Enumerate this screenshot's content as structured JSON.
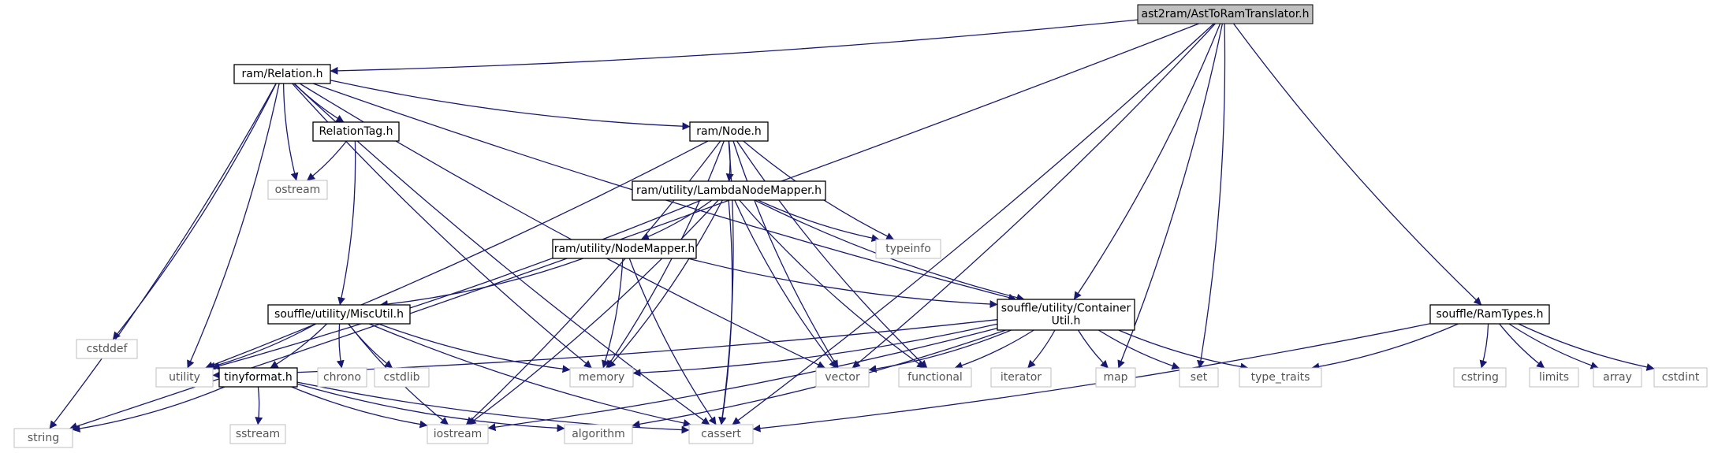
{
  "diagram": {
    "nodes": [
      {
        "id": "n0",
        "lines": [
          "ast2ram/AstToRamTranslator.h"
        ],
        "kind": "main"
      },
      {
        "id": "n1",
        "lines": [
          "ram/Relation.h"
        ],
        "kind": "doc"
      },
      {
        "id": "n2",
        "lines": [
          "string"
        ],
        "kind": "sys"
      },
      {
        "id": "n3",
        "lines": [
          "cstddef"
        ],
        "kind": "sys"
      },
      {
        "id": "n4",
        "lines": [
          "RelationTag.h"
        ],
        "kind": "doc"
      },
      {
        "id": "n5",
        "lines": [
          "ostream"
        ],
        "kind": "sys"
      },
      {
        "id": "n6",
        "lines": [
          "ram/Node.h"
        ],
        "kind": "doc"
      },
      {
        "id": "n7",
        "lines": [
          "ram/utility/LambdaNodeMapper.h"
        ],
        "kind": "doc"
      },
      {
        "id": "n8",
        "lines": [
          "typeinfo"
        ],
        "kind": "sys"
      },
      {
        "id": "n9",
        "lines": [
          "ram/utility/NodeMapper.h"
        ],
        "kind": "doc"
      },
      {
        "id": "n10",
        "lines": [
          "souffle/utility/MiscUtil.h"
        ],
        "kind": "doc"
      },
      {
        "id": "n11",
        "lines": [
          "souffle/utility/Container",
          "Util.h"
        ],
        "kind": "doc"
      },
      {
        "id": "n12",
        "lines": [
          "souffle/RamTypes.h"
        ],
        "kind": "doc"
      },
      {
        "id": "n13",
        "lines": [
          "utility"
        ],
        "kind": "sys"
      },
      {
        "id": "n14",
        "lines": [
          "tinyformat.h"
        ],
        "kind": "doc"
      },
      {
        "id": "n15",
        "lines": [
          "chrono"
        ],
        "kind": "sys"
      },
      {
        "id": "n16",
        "lines": [
          "cstdlib"
        ],
        "kind": "sys"
      },
      {
        "id": "n17",
        "lines": [
          "memory"
        ],
        "kind": "sys"
      },
      {
        "id": "n18",
        "lines": [
          "vector"
        ],
        "kind": "sys"
      },
      {
        "id": "n19",
        "lines": [
          "functional"
        ],
        "kind": "sys"
      },
      {
        "id": "n20",
        "lines": [
          "iterator"
        ],
        "kind": "sys"
      },
      {
        "id": "n21",
        "lines": [
          "map"
        ],
        "kind": "sys"
      },
      {
        "id": "n22",
        "lines": [
          "set"
        ],
        "kind": "sys"
      },
      {
        "id": "n23",
        "lines": [
          "type_traits"
        ],
        "kind": "sys"
      },
      {
        "id": "n24",
        "lines": [
          "cstring"
        ],
        "kind": "sys"
      },
      {
        "id": "n25",
        "lines": [
          "limits"
        ],
        "kind": "sys"
      },
      {
        "id": "n26",
        "lines": [
          "array"
        ],
        "kind": "sys"
      },
      {
        "id": "n27",
        "lines": [
          "cstdint"
        ],
        "kind": "sys"
      },
      {
        "id": "n28",
        "lines": [
          "sstream"
        ],
        "kind": "sys"
      },
      {
        "id": "n29",
        "lines": [
          "iostream"
        ],
        "kind": "sys"
      },
      {
        "id": "n30",
        "lines": [
          "algorithm"
        ],
        "kind": "sys"
      },
      {
        "id": "n31",
        "lines": [
          "cassert"
        ],
        "kind": "sys"
      }
    ],
    "edges": [
      [
        "n0",
        "n1"
      ],
      [
        "n0",
        "n2"
      ],
      [
        "n0",
        "n18"
      ],
      [
        "n0",
        "n11"
      ],
      [
        "n0",
        "n21"
      ],
      [
        "n0",
        "n22"
      ],
      [
        "n0",
        "n31"
      ],
      [
        "n0",
        "n12"
      ],
      [
        "n1",
        "n2"
      ],
      [
        "n1",
        "n3"
      ],
      [
        "n1",
        "n13"
      ],
      [
        "n1",
        "n4"
      ],
      [
        "n1",
        "n5"
      ],
      [
        "n1",
        "n6"
      ],
      [
        "n1",
        "n17"
      ],
      [
        "n1",
        "n18"
      ],
      [
        "n1",
        "n11"
      ],
      [
        "n1",
        "n31"
      ],
      [
        "n4",
        "n5"
      ],
      [
        "n4",
        "n10"
      ],
      [
        "n6",
        "n7"
      ],
      [
        "n6",
        "n8"
      ],
      [
        "n6",
        "n13"
      ],
      [
        "n6",
        "n17"
      ],
      [
        "n6",
        "n18"
      ],
      [
        "n6",
        "n19"
      ],
      [
        "n6",
        "n29"
      ],
      [
        "n6",
        "n31"
      ],
      [
        "n7",
        "n9"
      ],
      [
        "n7",
        "n8"
      ],
      [
        "n7",
        "n13"
      ],
      [
        "n7",
        "n17"
      ],
      [
        "n7",
        "n18"
      ],
      [
        "n7",
        "n19"
      ],
      [
        "n7",
        "n11"
      ],
      [
        "n7",
        "n29"
      ],
      [
        "n7",
        "n31"
      ],
      [
        "n9",
        "n10"
      ],
      [
        "n9",
        "n11"
      ],
      [
        "n9",
        "n17"
      ],
      [
        "n9",
        "n31"
      ],
      [
        "n10",
        "n13"
      ],
      [
        "n10",
        "n14"
      ],
      [
        "n10",
        "n15"
      ],
      [
        "n10",
        "n16"
      ],
      [
        "n10",
        "n17"
      ],
      [
        "n10",
        "n29"
      ],
      [
        "n10",
        "n31"
      ],
      [
        "n11",
        "n13"
      ],
      [
        "n11",
        "n17"
      ],
      [
        "n11",
        "n18"
      ],
      [
        "n11",
        "n19"
      ],
      [
        "n11",
        "n20"
      ],
      [
        "n11",
        "n21"
      ],
      [
        "n11",
        "n22"
      ],
      [
        "n11",
        "n23"
      ],
      [
        "n11",
        "n29"
      ],
      [
        "n11",
        "n30"
      ],
      [
        "n12",
        "n23"
      ],
      [
        "n12",
        "n24"
      ],
      [
        "n12",
        "n25"
      ],
      [
        "n12",
        "n26"
      ],
      [
        "n12",
        "n27"
      ],
      [
        "n12",
        "n31"
      ],
      [
        "n14",
        "n2"
      ],
      [
        "n14",
        "n28"
      ],
      [
        "n14",
        "n29"
      ],
      [
        "n14",
        "n30"
      ],
      [
        "n14",
        "n31"
      ]
    ]
  }
}
